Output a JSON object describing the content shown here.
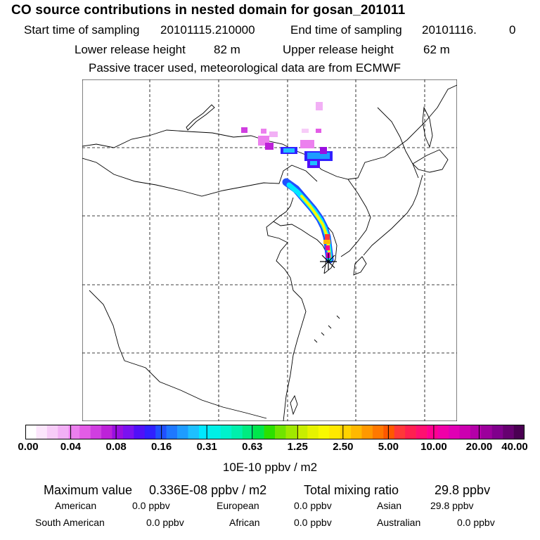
{
  "header": {
    "title": "CO  source contributions in nested domain for gosan_201011",
    "start_label": "Start time of sampling",
    "start_value": "20101115.210000",
    "end_label": "End time of sampling",
    "end_value": "20101116.",
    "end_value_tail": "0",
    "lower_label": "Lower release height",
    "lower_value": "82 m",
    "upper_label": "Upper release height",
    "upper_value": "62 m",
    "note": "Passive tracer used, meteorological data are from ECMWF"
  },
  "colorbar": {
    "ticks": [
      "0.00",
      "0.04",
      "0.08",
      "0.16",
      "0.31",
      "0.63",
      "1.25",
      "2.50",
      "5.00",
      "10.00",
      "20.00",
      "40.00"
    ],
    "unit": "10E-10 ppbv / m2",
    "colors": [
      "#ffffff",
      "#fce6fc",
      "#f7ccf8",
      "#f2b0f5",
      "#ec80ee",
      "#e35ce6",
      "#d03ee0",
      "#bd22d8",
      "#9a0fe0",
      "#7a12f0",
      "#5010f8",
      "#3020ff",
      "#2050ff",
      "#1e78ff",
      "#1e9cff",
      "#1ec0ff",
      "#00e8ff",
      "#00f0e6",
      "#00f2cc",
      "#00f0ac",
      "#00ec80",
      "#00e64c",
      "#2ce000",
      "#70e400",
      "#a0e800",
      "#c8ee00",
      "#e6f200",
      "#f8f800",
      "#ffe800",
      "#ffd200",
      "#ffb800",
      "#ff9800",
      "#ff7800",
      "#ff5800",
      "#ff3838",
      "#ff2050",
      "#ff1070",
      "#ff0090",
      "#f000a8",
      "#e000b4",
      "#cc00b0",
      "#b400a8",
      "#9c009c",
      "#80008c",
      "#660070",
      "#4a0052"
    ]
  },
  "stats": {
    "max_label": "Maximum value",
    "max_value": "0.336E-08 ppbv / m2",
    "total_label": "Total mixing ratio",
    "total_value": "29.8 ppbv",
    "regions": [
      {
        "name": "American",
        "value": "0.0 ppbv"
      },
      {
        "name": "European",
        "value": "0.0 ppbv"
      },
      {
        "name": "Asian",
        "value": "29.8 ppbv"
      },
      {
        "name": "South American",
        "value": "0.0 ppbv"
      },
      {
        "name": "African",
        "value": "0.0 ppbv"
      },
      {
        "name": "Australian",
        "value": "0.0 ppbv"
      }
    ]
  },
  "map": {
    "marker": "receptor-star",
    "gridlines": "dashed"
  }
}
